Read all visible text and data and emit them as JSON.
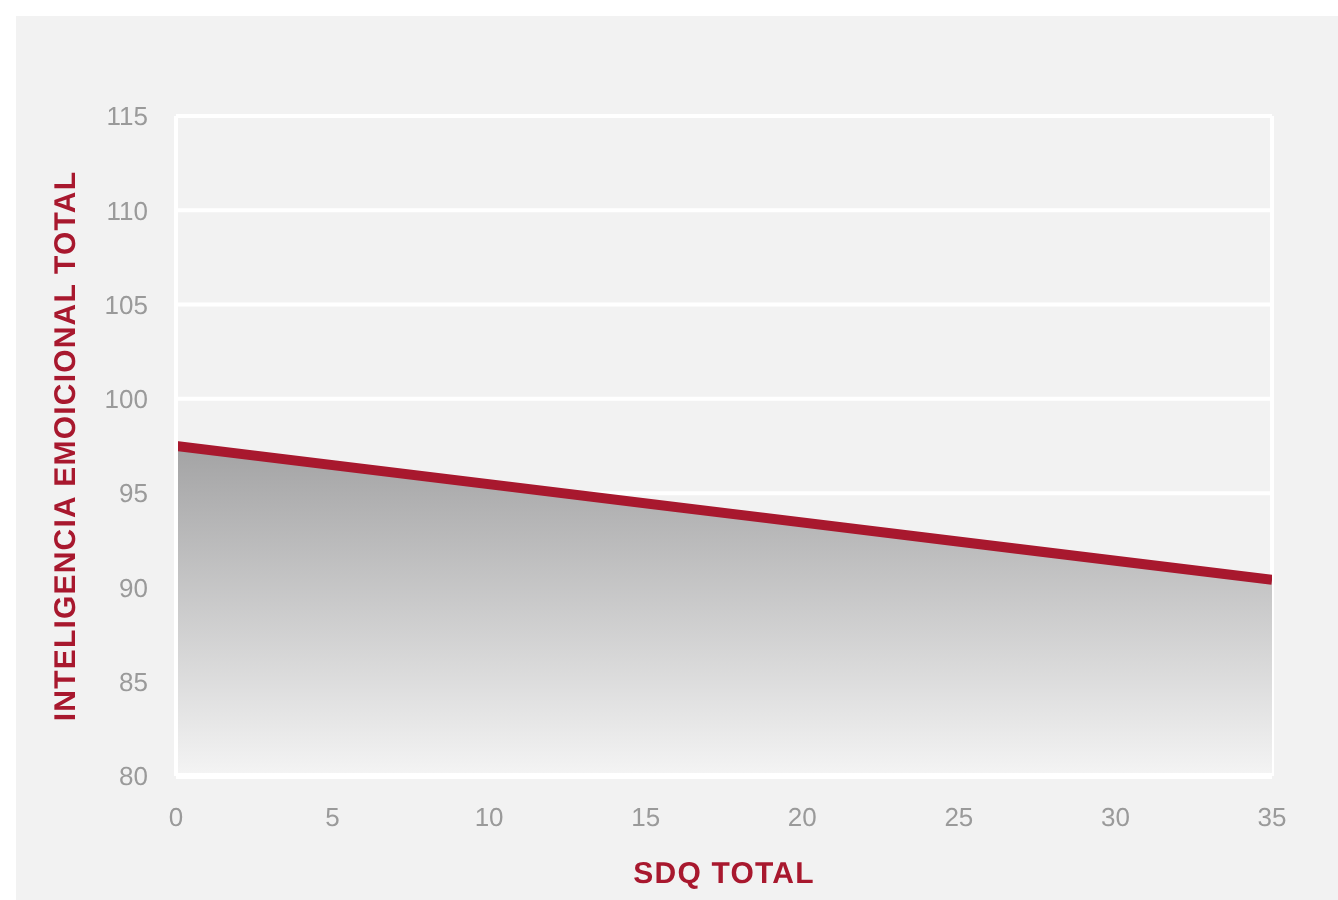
{
  "chart_data": {
    "type": "area",
    "xlabel": "SDQ TOTAL",
    "ylabel": "INTELIGENCIA EMOICIONAL TOTAL",
    "x": [
      0,
      35
    ],
    "series": [
      {
        "color": "#a8182e",
        "values": [
          97.5,
          90.4
        ]
      }
    ],
    "xlim": [
      0,
      35
    ],
    "xticks": [
      0,
      5,
      10,
      15,
      20,
      25,
      30,
      35
    ],
    "ylim": [
      80,
      115
    ],
    "yticks": [
      80,
      85,
      90,
      95,
      100,
      105,
      110,
      115
    ],
    "grid": "y"
  }
}
